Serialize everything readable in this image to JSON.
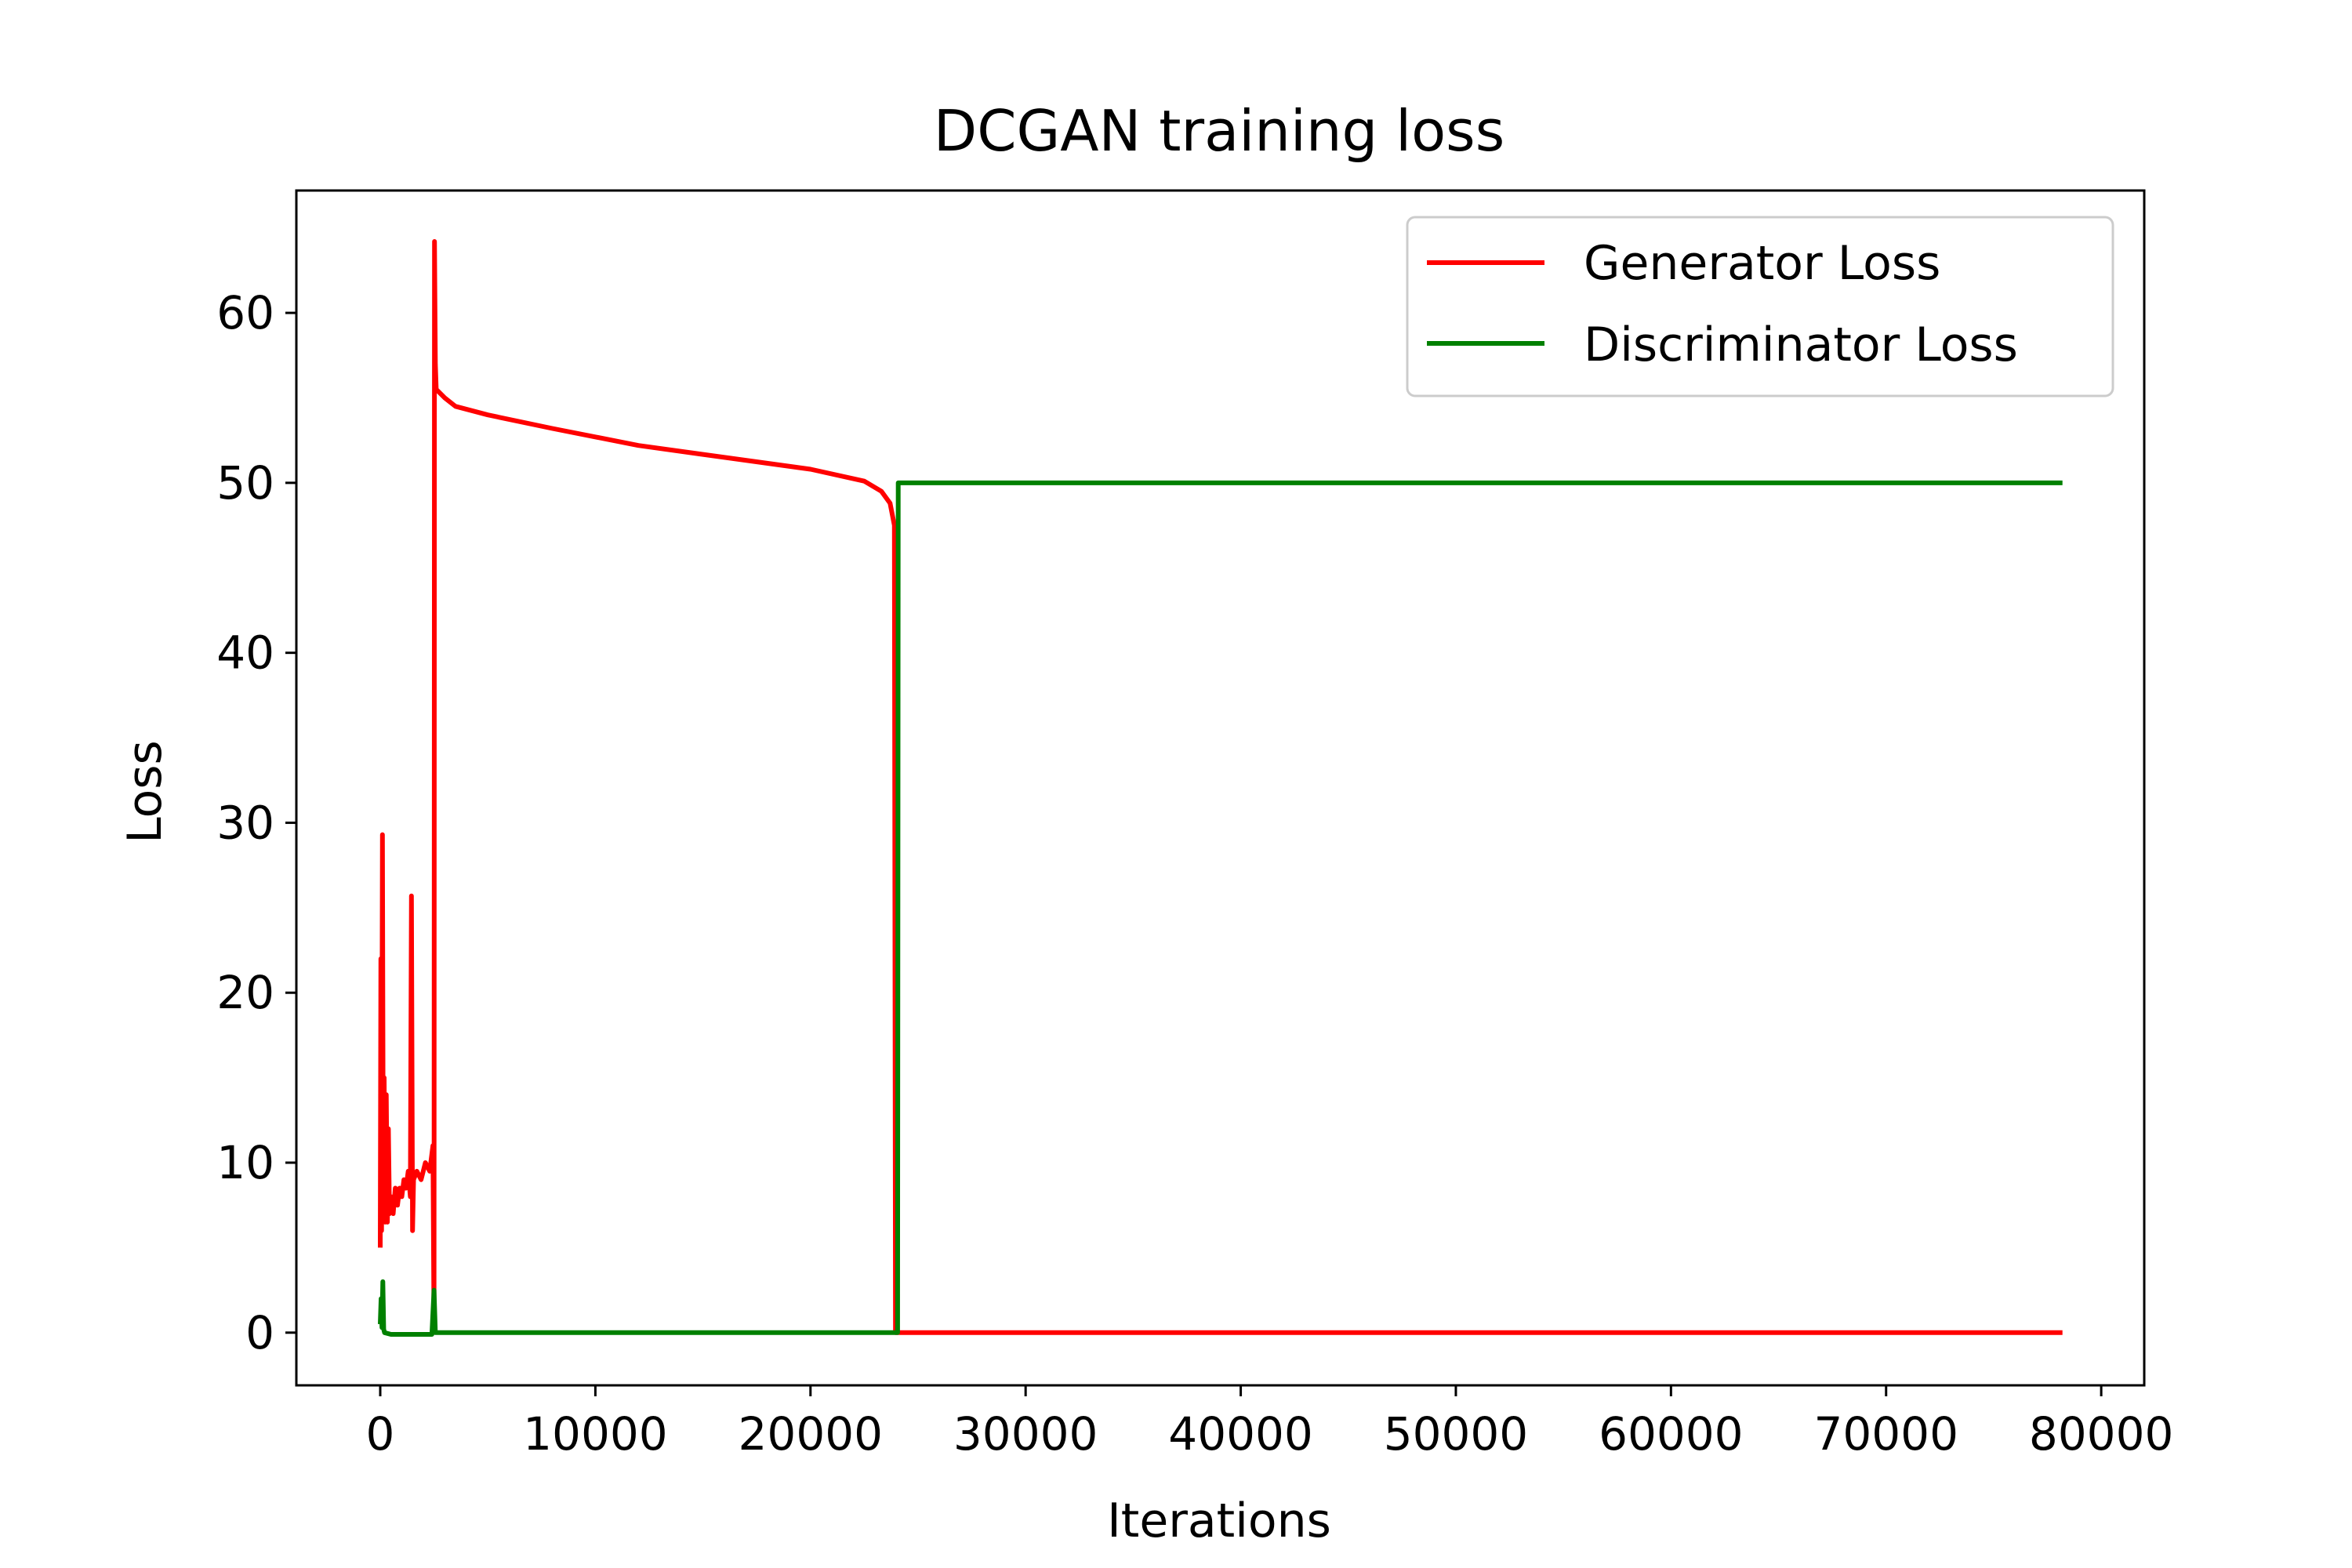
{
  "chart_data": {
    "type": "line",
    "title": "DCGAN training loss",
    "xlabel": "Iterations",
    "ylabel": "Loss",
    "xlim": [
      -3900,
      82000
    ],
    "ylim": [
      -3.1,
      67.2
    ],
    "xticks": [
      0,
      10000,
      20000,
      30000,
      40000,
      50000,
      60000,
      70000,
      80000
    ],
    "xtick_labels": [
      "0",
      "10000",
      "20000",
      "30000",
      "40000",
      "50000",
      "60000",
      "70000",
      "80000"
    ],
    "yticks": [
      0,
      10,
      20,
      30,
      40,
      50,
      60
    ],
    "ytick_labels": [
      "0",
      "10",
      "20",
      "30",
      "40",
      "50",
      "60"
    ],
    "grid": false,
    "legend_position": "top-right",
    "series": [
      {
        "name": "Generator Loss",
        "color": "#ff0000",
        "points": [
          [
            0,
            5
          ],
          [
            30,
            22
          ],
          [
            60,
            6
          ],
          [
            100,
            29.3
          ],
          [
            140,
            8
          ],
          [
            180,
            15
          ],
          [
            230,
            6.5
          ],
          [
            280,
            14
          ],
          [
            330,
            6.5
          ],
          [
            380,
            12
          ],
          [
            430,
            7
          ],
          [
            500,
            8
          ],
          [
            600,
            7
          ],
          [
            700,
            8.5
          ],
          [
            800,
            7.5
          ],
          [
            900,
            8.5
          ],
          [
            1000,
            8
          ],
          [
            1100,
            9
          ],
          [
            1200,
            8.5
          ],
          [
            1300,
            9.5
          ],
          [
            1400,
            8
          ],
          [
            1450,
            25.7
          ],
          [
            1500,
            6
          ],
          [
            1550,
            9
          ],
          [
            1700,
            9.5
          ],
          [
            1900,
            9
          ],
          [
            2100,
            10
          ],
          [
            2300,
            9.5
          ],
          [
            2450,
            11
          ],
          [
            2500,
            0.3
          ],
          [
            2520,
            64.2
          ],
          [
            2560,
            57
          ],
          [
            2600,
            55.5
          ],
          [
            3000,
            55
          ],
          [
            3500,
            54.5
          ],
          [
            5000,
            54
          ],
          [
            8000,
            53.2
          ],
          [
            12000,
            52.2
          ],
          [
            16000,
            51.5
          ],
          [
            20000,
            50.8
          ],
          [
            22500,
            50.1
          ],
          [
            23300,
            49.5
          ],
          [
            23700,
            48.8
          ],
          [
            23900,
            47.5
          ],
          [
            23950,
            0
          ],
          [
            78200,
            0
          ]
        ]
      },
      {
        "name": "Discriminator Loss",
        "color": "#008000",
        "points": [
          [
            0,
            0.5
          ],
          [
            40,
            2
          ],
          [
            80,
            0.3
          ],
          [
            120,
            3
          ],
          [
            160,
            0.2
          ],
          [
            200,
            0
          ],
          [
            500,
            -0.1
          ],
          [
            2400,
            -0.1
          ],
          [
            2500,
            2.5
          ],
          [
            2560,
            0
          ],
          [
            23950,
            0
          ],
          [
            24050,
            0
          ],
          [
            24080,
            50
          ],
          [
            78200,
            50
          ]
        ]
      }
    ]
  }
}
